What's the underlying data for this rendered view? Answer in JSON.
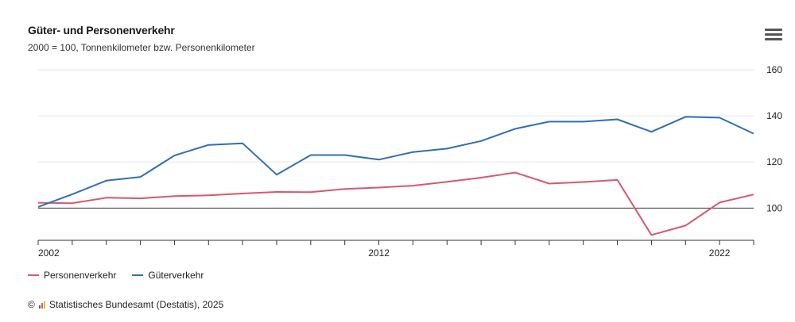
{
  "title": "Güter- und Personenverkehr",
  "subtitle": "2000 = 100, Tonnenkilometer bzw. Personenkilometer",
  "menu_icon": "hamburger-menu-icon",
  "credits": {
    "copyright": "©",
    "logo_icon": "destatis-logo-icon",
    "text": "Statistisches Bundesamt (Destatis), 2025"
  },
  "colors": {
    "personenverkehr": "#d9576b",
    "gueterverkehr": "#2f6fb5",
    "grid": "#e6e6e6",
    "baseline": "#333333"
  },
  "chart_data": {
    "type": "line",
    "title": "Güter- und Personenverkehr",
    "subtitle": "2000 = 100, Tonnenkilometer bzw. Personenkilometer",
    "x": [
      2002,
      2003,
      2004,
      2005,
      2006,
      2007,
      2008,
      2009,
      2010,
      2011,
      2012,
      2013,
      2014,
      2015,
      2016,
      2017,
      2018,
      2019,
      2020,
      2021,
      2022,
      2023
    ],
    "series": [
      {
        "name": "Personenverkehr",
        "values": [
          102.3,
          102.1,
          104.5,
          104.2,
          105.2,
          105.5,
          106.3,
          107.0,
          106.9,
          108.3,
          108.9,
          109.7,
          111.4,
          113.2,
          115.4,
          110.6,
          111.3,
          112.2,
          88.3,
          92.4,
          102.4,
          105.9
        ]
      },
      {
        "name": "Güterverkehr",
        "values": [
          100.5,
          106.0,
          111.9,
          113.5,
          122.8,
          127.4,
          128.1,
          114.5,
          123.0,
          123.0,
          121.0,
          124.3,
          125.8,
          129.1,
          134.4,
          137.5,
          137.5,
          138.5,
          133.1,
          139.6,
          139.2,
          132.3
        ]
      }
    ],
    "xlabel": "",
    "ylabel": "",
    "xticks": [
      "2002",
      "2012",
      "2022"
    ],
    "yticks": [
      "100",
      "120",
      "140",
      "160"
    ],
    "xlim": [
      2002,
      2023
    ],
    "ylim": [
      86,
      160
    ],
    "reference_line": 100,
    "y_axis_side": "right",
    "grid": true,
    "legend": "bottom-left"
  }
}
